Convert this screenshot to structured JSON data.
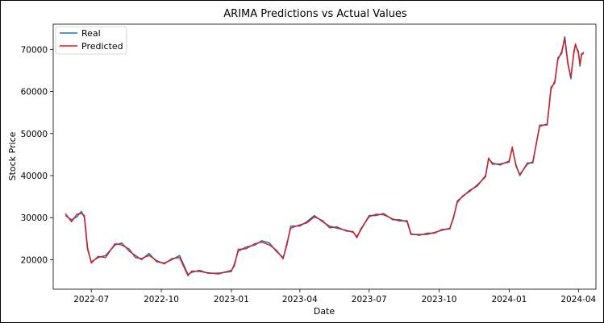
{
  "chart_data": {
    "type": "line",
    "title": "ARIMA Predictions vs Actual Values",
    "xlabel": "Date",
    "ylabel": "Stock Price",
    "xlim": [
      "2022-05-12",
      "2024-04-24"
    ],
    "ylim": [
      13000,
      76000
    ],
    "x_ticks": [
      "2022-07",
      "2022-10",
      "2023-01",
      "2023-04",
      "2023-07",
      "2023-10",
      "2024-01",
      "2024-04"
    ],
    "y_ticks": [
      20000,
      30000,
      40000,
      50000,
      60000,
      70000
    ],
    "grid": false,
    "legend": "top-left",
    "series": [
      {
        "name": "Real",
        "color": "#1f77b4",
        "x": [
          "2022-05-28",
          "2022-06-05",
          "2022-06-12",
          "2022-06-18",
          "2022-06-22",
          "2022-06-26",
          "2022-07-01",
          "2022-07-10",
          "2022-07-20",
          "2022-08-01",
          "2022-08-10",
          "2022-08-20",
          "2022-08-28",
          "2022-09-05",
          "2022-09-15",
          "2022-09-25",
          "2022-10-05",
          "2022-10-15",
          "2022-10-25",
          "2022-11-05",
          "2022-11-10",
          "2022-11-20",
          "2022-12-01",
          "2022-12-15",
          "2023-01-01",
          "2023-01-05",
          "2023-01-10",
          "2023-01-20",
          "2023-02-01",
          "2023-02-10",
          "2023-02-20",
          "2023-03-01",
          "2023-03-10",
          "2023-03-15",
          "2023-03-20",
          "2023-04-01",
          "2023-04-10",
          "2023-04-20",
          "2023-05-01",
          "2023-05-10",
          "2023-05-20",
          "2023-06-01",
          "2023-06-10",
          "2023-06-15",
          "2023-06-20",
          "2023-07-01",
          "2023-07-10",
          "2023-07-20",
          "2023-08-01",
          "2023-08-10",
          "2023-08-20",
          "2023-08-25",
          "2023-09-05",
          "2023-09-15",
          "2023-09-25",
          "2023-10-05",
          "2023-10-15",
          "2023-10-20",
          "2023-10-25",
          "2023-11-01",
          "2023-11-10",
          "2023-11-20",
          "2023-12-01",
          "2023-12-05",
          "2023-12-10",
          "2023-12-20",
          "2024-01-01",
          "2024-01-05",
          "2024-01-10",
          "2024-01-15",
          "2024-01-25",
          "2024-02-01",
          "2024-02-10",
          "2024-02-20",
          "2024-02-25",
          "2024-03-01",
          "2024-03-05",
          "2024-03-10",
          "2024-03-14",
          "2024-03-18",
          "2024-03-22",
          "2024-03-26",
          "2024-03-28",
          "2024-04-01",
          "2024-04-03",
          "2024-04-05",
          "2024-04-08"
        ],
        "y": [
          30500,
          29500,
          30200,
          31500,
          30000,
          22500,
          19500,
          20500,
          21000,
          23500,
          24000,
          22000,
          21000,
          20000,
          21500,
          19500,
          19200,
          20000,
          21000,
          16500,
          17000,
          17500,
          16800,
          16800,
          17200,
          19000,
          22000,
          23000,
          23500,
          24500,
          24000,
          22000,
          20500,
          23500,
          28000,
          28000,
          29000,
          30500,
          29000,
          28000,
          27500,
          27000,
          26500,
          25500,
          27000,
          30500,
          30500,
          31000,
          29500,
          29500,
          29000,
          26000,
          26000,
          26000,
          26500,
          27000,
          27500,
          30000,
          34000,
          35000,
          36500,
          37500,
          40000,
          44000,
          43000,
          42500,
          43500,
          46500,
          42500,
          40000,
          43000,
          43000,
          52000,
          52000,
          61000,
          62000,
          68000,
          69000,
          73000,
          67000,
          63000,
          69500,
          71000,
          69500,
          66000,
          69000,
          69000
        ]
      },
      {
        "name": "Predicted",
        "color": "#e31a1c",
        "x": [
          "2022-05-28",
          "2022-06-05",
          "2022-06-12",
          "2022-06-18",
          "2022-06-22",
          "2022-06-26",
          "2022-07-01",
          "2022-07-10",
          "2022-07-20",
          "2022-08-01",
          "2022-08-10",
          "2022-08-20",
          "2022-08-28",
          "2022-09-05",
          "2022-09-15",
          "2022-09-25",
          "2022-10-05",
          "2022-10-15",
          "2022-10-25",
          "2022-11-05",
          "2022-11-10",
          "2022-11-20",
          "2022-12-01",
          "2022-12-15",
          "2023-01-01",
          "2023-01-05",
          "2023-01-10",
          "2023-01-20",
          "2023-02-01",
          "2023-02-10",
          "2023-02-20",
          "2023-03-01",
          "2023-03-10",
          "2023-03-15",
          "2023-03-20",
          "2023-04-01",
          "2023-04-10",
          "2023-04-20",
          "2023-05-01",
          "2023-05-10",
          "2023-05-20",
          "2023-06-01",
          "2023-06-10",
          "2023-06-15",
          "2023-06-20",
          "2023-07-01",
          "2023-07-10",
          "2023-07-20",
          "2023-08-01",
          "2023-08-10",
          "2023-08-20",
          "2023-08-25",
          "2023-09-05",
          "2023-09-15",
          "2023-09-25",
          "2023-10-05",
          "2023-10-15",
          "2023-10-20",
          "2023-10-25",
          "2023-11-01",
          "2023-11-10",
          "2023-11-20",
          "2023-12-01",
          "2023-12-05",
          "2023-12-10",
          "2023-12-20",
          "2024-01-01",
          "2024-01-05",
          "2024-01-10",
          "2024-01-15",
          "2024-01-25",
          "2024-02-01",
          "2024-02-10",
          "2024-02-20",
          "2024-02-25",
          "2024-03-01",
          "2024-03-05",
          "2024-03-10",
          "2024-03-14",
          "2024-03-18",
          "2024-03-22",
          "2024-03-26",
          "2024-03-28",
          "2024-04-01",
          "2024-04-03",
          "2024-04-05",
          "2024-04-08"
        ],
        "y": [
          31000,
          29000,
          30800,
          31000,
          30500,
          23000,
          19200,
          20800,
          20500,
          23800,
          23500,
          22500,
          20500,
          20300,
          21000,
          19800,
          19000,
          20300,
          20500,
          16200,
          17300,
          17200,
          16900,
          16600,
          17500,
          18500,
          22500,
          22600,
          23800,
          24200,
          23500,
          22300,
          20200,
          24000,
          27500,
          28300,
          28700,
          30200,
          29300,
          27600,
          27800,
          26800,
          26700,
          25200,
          27300,
          30200,
          30800,
          30700,
          29700,
          29200,
          29300,
          26200,
          25800,
          26300,
          26300,
          27200,
          27300,
          30300,
          33600,
          35200,
          36200,
          37800,
          39700,
          44200,
          42700,
          42800,
          43200,
          46800,
          42200,
          40300,
          42700,
          43300,
          51700,
          52300,
          60500,
          62500,
          67500,
          69500,
          72600,
          66500,
          63500,
          69000,
          71300,
          69000,
          66500,
          68600,
          69400
        ]
      }
    ]
  }
}
